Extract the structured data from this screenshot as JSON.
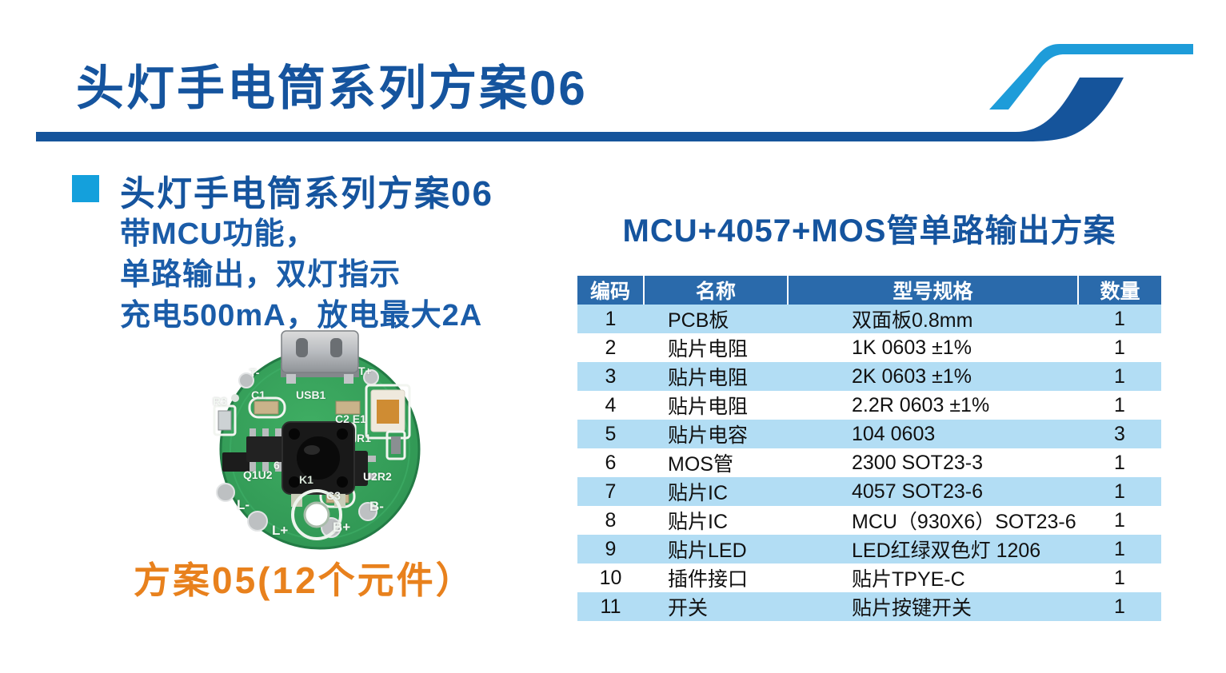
{
  "page": {
    "title": "头灯手电筒系列方案06"
  },
  "colors": {
    "title-blue": "#15549e",
    "desc-blue": "#1a5ca8",
    "accent-cyan": "#14a0dc",
    "header-bg": "#2a6aab",
    "row-alt": "#b2ddf4",
    "orange": "#e8811d",
    "logo-light": "#1e9cd9",
    "logo-dark": "#15549b",
    "body-text": "#111111"
  },
  "logo": {
    "name": "double-s-swoosh"
  },
  "left": {
    "heading": "头灯手电筒系列方案06",
    "description_lines": [
      "带MCU功能，",
      "单路输出，双灯指示",
      "充电500mA，放电最大2A"
    ],
    "caption": "方案05(12个元件）",
    "pcb": {
      "description": "round-green-pcb-photo",
      "labels": [
        "T-",
        "T+",
        "USB1",
        "C1",
        "R3",
        "C2 E1",
        "R1",
        "Q1U2",
        "6",
        "K1",
        "U2R2",
        "C3",
        "L-",
        "L+",
        "B+",
        "B-"
      ]
    }
  },
  "right": {
    "title": "MCU+4057+MOS管单路输出方案",
    "table": {
      "headers": [
        "编码",
        "名称",
        "型号规格",
        "数量"
      ],
      "rows": [
        [
          "1",
          "PCB板",
          "双面板0.8mm",
          "1"
        ],
        [
          "2",
          "贴片电阻",
          "1K 0603  ±1%",
          "1"
        ],
        [
          "3",
          "贴片电阻",
          "2K 0603  ±1%",
          "1"
        ],
        [
          "4",
          "贴片电阻",
          "2.2R  0603  ±1%",
          "1"
        ],
        [
          "5",
          "贴片电容",
          "104 0603",
          "3"
        ],
        [
          "6",
          "MOS管",
          "2300 SOT23-3",
          "1"
        ],
        [
          "7",
          "贴片IC",
          "4057  SOT23-6",
          "1"
        ],
        [
          "8",
          "贴片IC",
          "MCU（930X6）SOT23-6",
          "1"
        ],
        [
          "9",
          "贴片LED",
          "LED红绿双色灯  1206",
          "1"
        ],
        [
          "10",
          "插件接口",
          "贴片TPYE-C",
          "1"
        ],
        [
          "11",
          "开关",
          "贴片按键开关",
          "1"
        ]
      ]
    }
  }
}
